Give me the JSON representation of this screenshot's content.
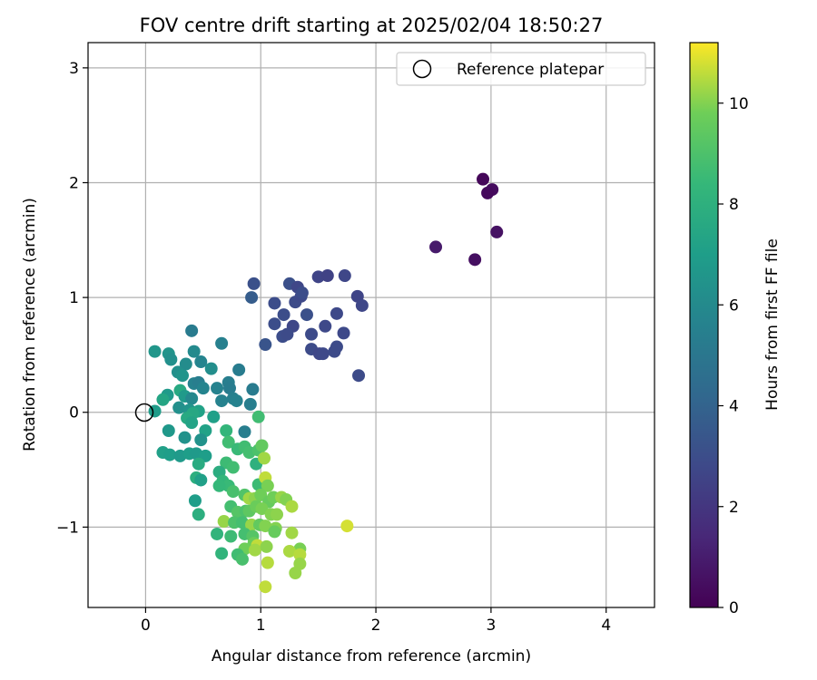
{
  "chart_data": {
    "type": "scatter",
    "title": "FOV centre drift starting at 2025/02/04 18:50:27",
    "xlabel": "Angular distance from reference (arcmin)",
    "ylabel": "Rotation from reference (arcmin)",
    "xlim": [
      -0.5,
      4.42
    ],
    "ylim": [
      -1.7,
      3.22
    ],
    "xticks": [
      0,
      1,
      2,
      3,
      4
    ],
    "yticks": [
      -1,
      0,
      1,
      2,
      3
    ],
    "grid": true,
    "legend": {
      "placement": "top-right",
      "entries": [
        "Reference platepar"
      ]
    },
    "reference_point": {
      "x": 0,
      "y": 0
    },
    "colorbar": {
      "label": "Hours from first FF file",
      "colormap": "viridis",
      "range": [
        0,
        11.2
      ],
      "ticks": [
        0,
        2,
        4,
        6,
        8,
        10
      ]
    },
    "series": [
      {
        "points": [
          {
            "x": 2.93,
            "y": 2.03,
            "c": 0.2
          },
          {
            "x": 3.01,
            "y": 1.94,
            "c": 0.4
          },
          {
            "x": 2.97,
            "y": 1.91,
            "c": 0.3
          },
          {
            "x": 3.05,
            "y": 1.57,
            "c": 0.6
          },
          {
            "x": 2.52,
            "y": 1.44,
            "c": 0.9
          },
          {
            "x": 2.86,
            "y": 1.33,
            "c": 0.5
          },
          {
            "x": 0.94,
            "y": 1.12,
            "c": 3.1
          },
          {
            "x": 1.25,
            "y": 1.12,
            "c": 3.1
          },
          {
            "x": 1.32,
            "y": 1.09,
            "c": 2.7
          },
          {
            "x": 1.5,
            "y": 1.18,
            "c": 2.6
          },
          {
            "x": 1.58,
            "y": 1.19,
            "c": 2.5
          },
          {
            "x": 1.73,
            "y": 1.19,
            "c": 2.7
          },
          {
            "x": 0.92,
            "y": 1.0,
            "c": 3.7
          },
          {
            "x": 1.12,
            "y": 0.95,
            "c": 3.0
          },
          {
            "x": 1.3,
            "y": 0.96,
            "c": 2.9
          },
          {
            "x": 1.35,
            "y": 1.01,
            "c": 2.8
          },
          {
            "x": 1.36,
            "y": 1.04,
            "c": 3.0
          },
          {
            "x": 1.84,
            "y": 1.01,
            "c": 2.6
          },
          {
            "x": 1.88,
            "y": 0.93,
            "c": 2.7
          },
          {
            "x": 1.2,
            "y": 0.85,
            "c": 3.0
          },
          {
            "x": 1.4,
            "y": 0.85,
            "c": 3.1
          },
          {
            "x": 1.66,
            "y": 0.86,
            "c": 2.8
          },
          {
            "x": 1.12,
            "y": 0.77,
            "c": 3.0
          },
          {
            "x": 1.28,
            "y": 0.75,
            "c": 2.7
          },
          {
            "x": 1.56,
            "y": 0.75,
            "c": 2.8
          },
          {
            "x": 1.19,
            "y": 0.66,
            "c": 3.0
          },
          {
            "x": 1.23,
            "y": 0.68,
            "c": 2.9
          },
          {
            "x": 1.44,
            "y": 0.68,
            "c": 2.9
          },
          {
            "x": 1.72,
            "y": 0.69,
            "c": 2.8
          },
          {
            "x": 1.04,
            "y": 0.59,
            "c": 3.3
          },
          {
            "x": 1.44,
            "y": 0.55,
            "c": 2.9
          },
          {
            "x": 1.51,
            "y": 0.51,
            "c": 2.7
          },
          {
            "x": 1.54,
            "y": 0.51,
            "c": 2.8
          },
          {
            "x": 1.64,
            "y": 0.53,
            "c": 2.9
          },
          {
            "x": 1.66,
            "y": 0.57,
            "c": 2.9
          },
          {
            "x": 1.85,
            "y": 0.32,
            "c": 2.9
          },
          {
            "x": 0.4,
            "y": 0.71,
            "c": 5.2
          },
          {
            "x": 0.66,
            "y": 0.6,
            "c": 5.5
          },
          {
            "x": 0.08,
            "y": 0.53,
            "c": 6.6
          },
          {
            "x": 0.2,
            "y": 0.51,
            "c": 6.5
          },
          {
            "x": 0.42,
            "y": 0.53,
            "c": 6.0
          },
          {
            "x": 0.22,
            "y": 0.46,
            "c": 6.3
          },
          {
            "x": 0.35,
            "y": 0.42,
            "c": 6.1
          },
          {
            "x": 0.48,
            "y": 0.44,
            "c": 5.7
          },
          {
            "x": 0.28,
            "y": 0.35,
            "c": 6.3
          },
          {
            "x": 0.32,
            "y": 0.32,
            "c": 6.5
          },
          {
            "x": 0.57,
            "y": 0.38,
            "c": 6.2
          },
          {
            "x": 0.81,
            "y": 0.37,
            "c": 5.3
          },
          {
            "x": 0.72,
            "y": 0.26,
            "c": 5.4
          },
          {
            "x": 0.42,
            "y": 0.25,
            "c": 5.6
          },
          {
            "x": 0.46,
            "y": 0.26,
            "c": 5.4
          },
          {
            "x": 0.5,
            "y": 0.21,
            "c": 5.7
          },
          {
            "x": 0.62,
            "y": 0.21,
            "c": 5.6
          },
          {
            "x": 0.73,
            "y": 0.21,
            "c": 5.3
          },
          {
            "x": 0.93,
            "y": 0.2,
            "c": 5.2
          },
          {
            "x": 0.3,
            "y": 0.19,
            "c": 7.6
          },
          {
            "x": 0.19,
            "y": 0.15,
            "c": 6.8
          },
          {
            "x": 0.34,
            "y": 0.14,
            "c": 6.8
          },
          {
            "x": 0.4,
            "y": 0.12,
            "c": 5.9
          },
          {
            "x": 0.15,
            "y": 0.11,
            "c": 7.4
          },
          {
            "x": 0.66,
            "y": 0.1,
            "c": 5.6
          },
          {
            "x": 0.76,
            "y": 0.12,
            "c": 5.5
          },
          {
            "x": 0.79,
            "y": 0.1,
            "c": 5.6
          },
          {
            "x": 0.91,
            "y": 0.07,
            "c": 5.4
          },
          {
            "x": 0.08,
            "y": 0.01,
            "c": 6.9
          },
          {
            "x": 0.29,
            "y": 0.04,
            "c": 6.3
          },
          {
            "x": 0.38,
            "y": 0.02,
            "c": 6.5
          },
          {
            "x": 0.46,
            "y": 0.01,
            "c": 7.2
          },
          {
            "x": 0.41,
            "y": -0.01,
            "c": 7.5
          },
          {
            "x": 0.36,
            "y": -0.05,
            "c": 7.6
          },
          {
            "x": 0.59,
            "y": -0.04,
            "c": 7.1
          },
          {
            "x": 0.4,
            "y": -0.09,
            "c": 7.3
          },
          {
            "x": 0.2,
            "y": -0.16,
            "c": 6.7
          },
          {
            "x": 0.52,
            "y": -0.16,
            "c": 7.2
          },
          {
            "x": 0.34,
            "y": -0.22,
            "c": 6.4
          },
          {
            "x": 0.48,
            "y": -0.24,
            "c": 6.4
          },
          {
            "x": 0.86,
            "y": -0.17,
            "c": 5.4
          },
          {
            "x": 0.15,
            "y": -0.35,
            "c": 7.1
          },
          {
            "x": 0.21,
            "y": -0.37,
            "c": 7.0
          },
          {
            "x": 0.3,
            "y": -0.38,
            "c": 6.8
          },
          {
            "x": 0.38,
            "y": -0.36,
            "c": 7.0
          },
          {
            "x": 0.44,
            "y": -0.36,
            "c": 6.8
          },
          {
            "x": 0.52,
            "y": -0.38,
            "c": 7.0
          },
          {
            "x": 0.46,
            "y": -0.45,
            "c": 7.7
          },
          {
            "x": 0.44,
            "y": -0.57,
            "c": 7.9
          },
          {
            "x": 0.48,
            "y": -0.59,
            "c": 7.1
          },
          {
            "x": 0.43,
            "y": -0.77,
            "c": 7.0
          },
          {
            "x": 0.46,
            "y": -0.89,
            "c": 7.9
          },
          {
            "x": 0.98,
            "y": -0.04,
            "c": 8.7
          },
          {
            "x": 0.7,
            "y": -0.16,
            "c": 8.3
          },
          {
            "x": 0.72,
            "y": -0.26,
            "c": 8.7
          },
          {
            "x": 0.8,
            "y": -0.32,
            "c": 8.5
          },
          {
            "x": 0.86,
            "y": -0.3,
            "c": 8.7
          },
          {
            "x": 0.9,
            "y": -0.35,
            "c": 8.8
          },
          {
            "x": 0.98,
            "y": -0.33,
            "c": 9.0
          },
          {
            "x": 1.01,
            "y": -0.29,
            "c": 9.5
          },
          {
            "x": 0.7,
            "y": -0.44,
            "c": 8.6
          },
          {
            "x": 0.76,
            "y": -0.48,
            "c": 8.7
          },
          {
            "x": 0.96,
            "y": -0.45,
            "c": 8.0
          },
          {
            "x": 1.03,
            "y": -0.4,
            "c": 10.3
          },
          {
            "x": 0.64,
            "y": -0.52,
            "c": 7.8
          },
          {
            "x": 0.67,
            "y": -0.6,
            "c": 8.3
          },
          {
            "x": 0.72,
            "y": -0.64,
            "c": 8.5
          },
          {
            "x": 0.98,
            "y": -0.63,
            "c": 8.6
          },
          {
            "x": 1.04,
            "y": -0.57,
            "c": 10.6
          },
          {
            "x": 1.06,
            "y": -0.64,
            "c": 9.9
          },
          {
            "x": 0.64,
            "y": -0.64,
            "c": 8.4
          },
          {
            "x": 0.76,
            "y": -0.69,
            "c": 8.9
          },
          {
            "x": 0.86,
            "y": -0.72,
            "c": 9.1
          },
          {
            "x": 0.9,
            "y": -0.75,
            "c": 10.3
          },
          {
            "x": 0.95,
            "y": -0.75,
            "c": 10.1
          },
          {
            "x": 1.0,
            "y": -0.72,
            "c": 9.8
          },
          {
            "x": 1.07,
            "y": -0.78,
            "c": 9.6
          },
          {
            "x": 1.11,
            "y": -0.74,
            "c": 9.8
          },
          {
            "x": 1.18,
            "y": -0.74,
            "c": 10.2
          },
          {
            "x": 1.22,
            "y": -0.76,
            "c": 10.0
          },
          {
            "x": 1.27,
            "y": -0.82,
            "c": 10.4
          },
          {
            "x": 0.74,
            "y": -0.82,
            "c": 8.8
          },
          {
            "x": 0.8,
            "y": -0.87,
            "c": 9.2
          },
          {
            "x": 0.87,
            "y": -0.86,
            "c": 9.0
          },
          {
            "x": 0.9,
            "y": -0.86,
            "c": 9.4
          },
          {
            "x": 0.96,
            "y": -0.82,
            "c": 9.7
          },
          {
            "x": 1.01,
            "y": -0.84,
            "c": 9.9
          },
          {
            "x": 1.09,
            "y": -0.89,
            "c": 10.0
          },
          {
            "x": 1.14,
            "y": -0.89,
            "c": 10.1
          },
          {
            "x": 0.68,
            "y": -0.95,
            "c": 10.2
          },
          {
            "x": 0.77,
            "y": -0.96,
            "c": 9.0
          },
          {
            "x": 0.84,
            "y": -0.96,
            "c": 8.8
          },
          {
            "x": 0.92,
            "y": -0.98,
            "c": 10.2
          },
          {
            "x": 0.99,
            "y": -0.98,
            "c": 9.5
          },
          {
            "x": 1.04,
            "y": -0.99,
            "c": 10.0
          },
          {
            "x": 1.13,
            "y": -1.01,
            "c": 10.0
          },
          {
            "x": 1.75,
            "y": -0.99,
            "c": 10.8
          },
          {
            "x": 0.62,
            "y": -1.06,
            "c": 8.2
          },
          {
            "x": 0.74,
            "y": -1.08,
            "c": 8.6
          },
          {
            "x": 0.86,
            "y": -1.06,
            "c": 8.8
          },
          {
            "x": 0.93,
            "y": -1.08,
            "c": 9.2
          },
          {
            "x": 1.12,
            "y": -1.04,
            "c": 9.6
          },
          {
            "x": 1.27,
            "y": -1.05,
            "c": 10.3
          },
          {
            "x": 0.94,
            "y": -1.14,
            "c": 9.7
          },
          {
            "x": 0.97,
            "y": -1.16,
            "c": 10.6
          },
          {
            "x": 0.86,
            "y": -1.19,
            "c": 9.8
          },
          {
            "x": 0.95,
            "y": -1.2,
            "c": 10.3
          },
          {
            "x": 1.05,
            "y": -1.17,
            "c": 10.1
          },
          {
            "x": 1.34,
            "y": -1.19,
            "c": 9.9
          },
          {
            "x": 0.8,
            "y": -1.24,
            "c": 8.7
          },
          {
            "x": 0.84,
            "y": -1.28,
            "c": 8.9
          },
          {
            "x": 0.66,
            "y": -1.23,
            "c": 8.2
          },
          {
            "x": 1.25,
            "y": -1.21,
            "c": 10.4
          },
          {
            "x": 1.34,
            "y": -1.24,
            "c": 10.5
          },
          {
            "x": 1.34,
            "y": -1.32,
            "c": 10.2
          },
          {
            "x": 1.06,
            "y": -1.31,
            "c": 10.5
          },
          {
            "x": 1.3,
            "y": -1.4,
            "c": 10.2
          },
          {
            "x": 1.04,
            "y": -1.52,
            "c": 10.6
          }
        ]
      }
    ]
  }
}
